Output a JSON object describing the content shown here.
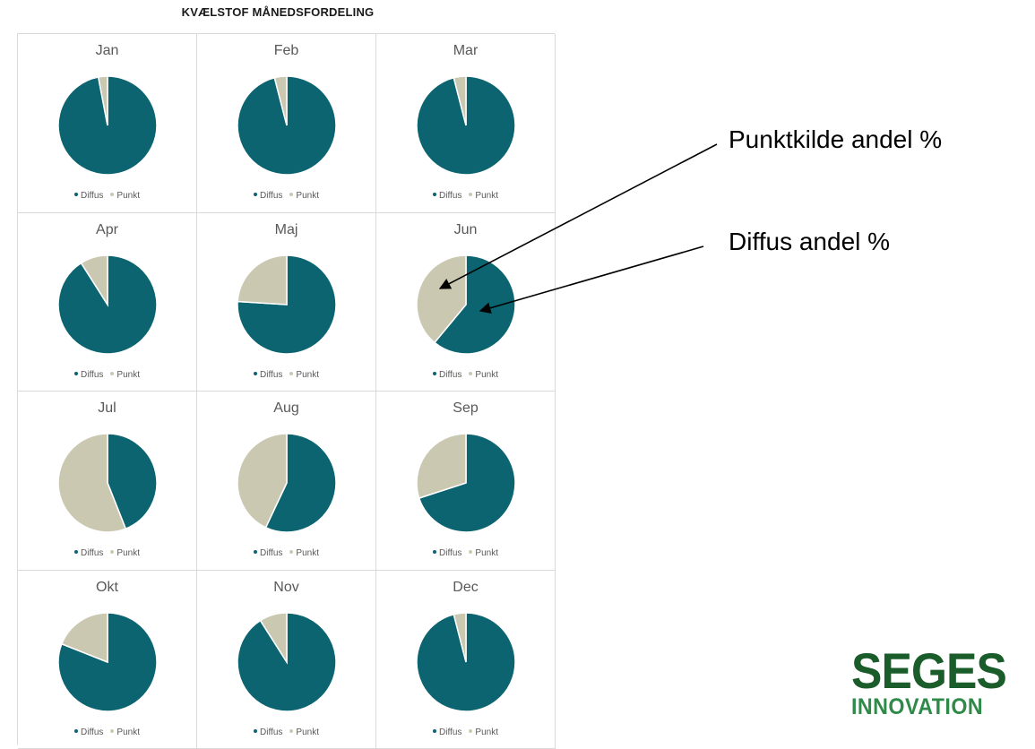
{
  "title": "KVÆLSTOF MÅNEDSFORDELING",
  "colors": {
    "diffus": "#0b6470",
    "punkt": "#cbc8b2"
  },
  "chart_data": {
    "type": "pie",
    "title": "KVÆLSTOF MÅNEDSFORDELING",
    "legend": [
      "Diffus",
      "Punkt"
    ],
    "legend_position": "bottom",
    "charts": [
      {
        "label": "Jan",
        "values": [
          97,
          3
        ]
      },
      {
        "label": "Feb",
        "values": [
          96,
          4
        ]
      },
      {
        "label": "Mar",
        "values": [
          96,
          4
        ]
      },
      {
        "label": "Apr",
        "values": [
          91,
          9
        ]
      },
      {
        "label": "Maj",
        "values": [
          76,
          24
        ]
      },
      {
        "label": "Jun",
        "values": [
          61,
          39
        ]
      },
      {
        "label": "Jul",
        "values": [
          44,
          56
        ]
      },
      {
        "label": "Aug",
        "values": [
          57,
          43
        ]
      },
      {
        "label": "Sep",
        "values": [
          70,
          30
        ]
      },
      {
        "label": "Okt",
        "values": [
          81,
          19
        ]
      },
      {
        "label": "Nov",
        "values": [
          91,
          9
        ]
      },
      {
        "label": "Dec",
        "values": [
          96,
          4
        ]
      }
    ]
  },
  "annotations": {
    "punkt": "Punktkilde andel %",
    "diffus": "Diffus andel %"
  },
  "logo": {
    "line1": "SEGES",
    "line2": "INNOVATION"
  }
}
